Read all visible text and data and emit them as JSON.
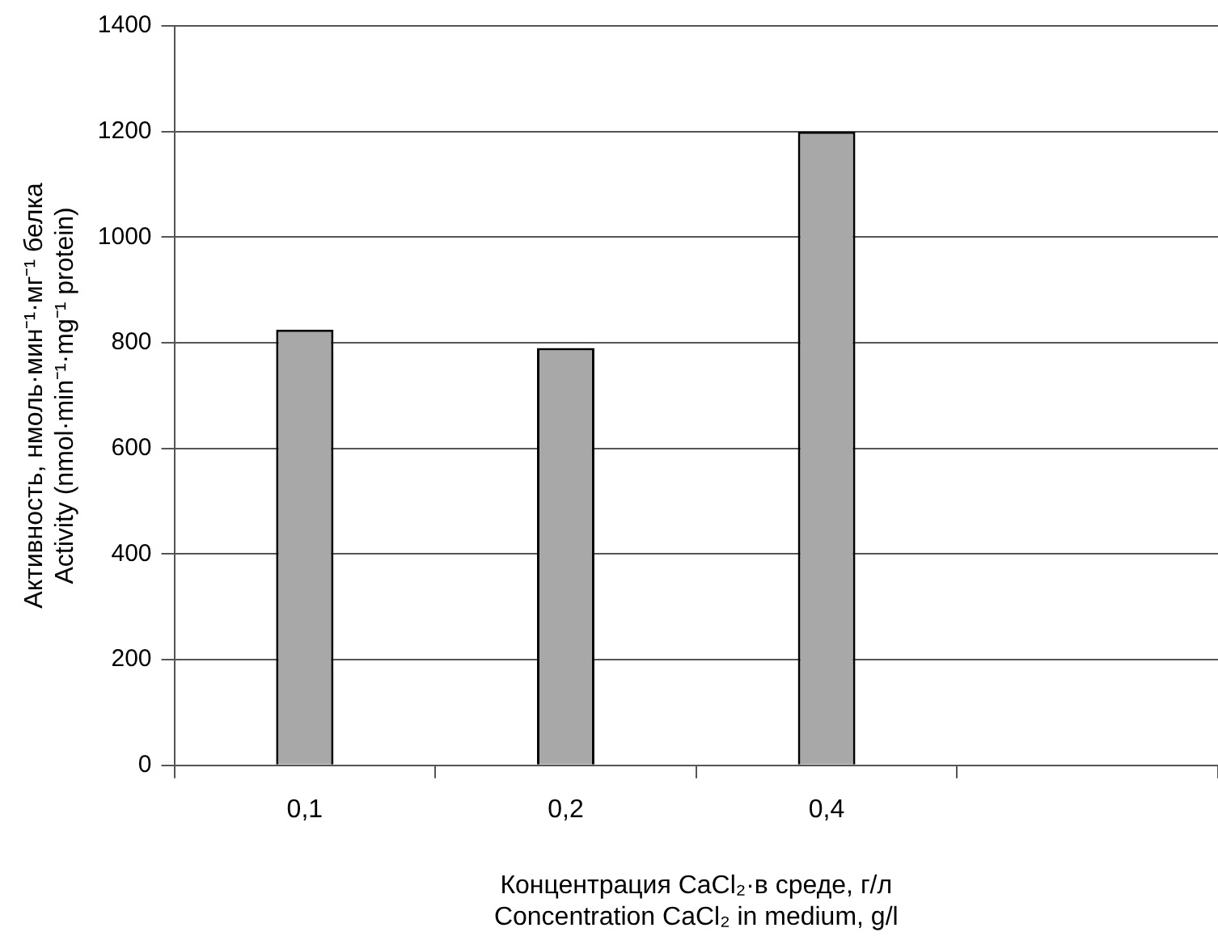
{
  "chart_data": {
    "type": "bar",
    "xlabel": "Концентрация CaCl₂·в среде, г/л\nConcentration CaCl₂ in medium, g/l",
    "ylabel": "Активность, нмоль·мин⁻¹·мг⁻¹ белка\nActivity (nmol·min⁻¹·mg⁻¹ protein)",
    "categories": [
      "0,1",
      "0,2",
      "0,4",
      null
    ],
    "values": [
      825,
      790,
      1200,
      null
    ],
    "color": "#a8a8a8",
    "ylim": [
      0,
      1400
    ],
    "yticks": [
      0,
      200,
      400,
      600,
      800,
      1000,
      1200,
      1400
    ],
    "grid": "y",
    "legend": false
  }
}
